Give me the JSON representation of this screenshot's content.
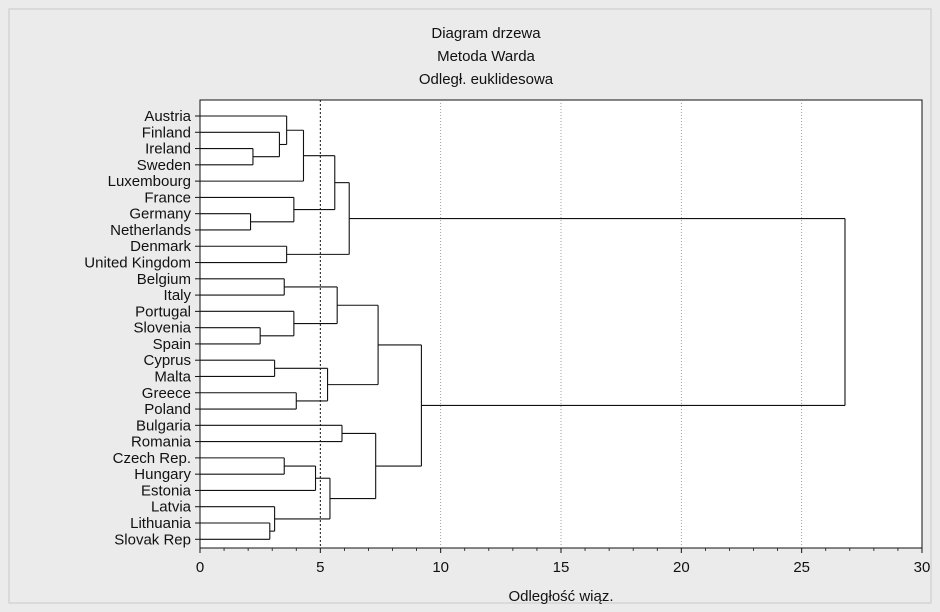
{
  "chart_data": {
    "type": "dendrogram",
    "title_lines": [
      "Diagram drzewa",
      "Metoda Warda",
      "Odległ. euklidesowa"
    ],
    "xlabel": "Odległość wiąz.",
    "xlim": [
      0,
      30
    ],
    "xticks": [
      0,
      5,
      10,
      15,
      20,
      25,
      30
    ],
    "grid": true,
    "reference_line": 5,
    "leaves": [
      "Austria",
      "Finland",
      "Ireland",
      "Sweden",
      "Luxembourg",
      "France",
      "Germany",
      "Netherlands",
      "Denmark",
      "United Kingdom",
      "Belgium",
      "Italy",
      "Portugal",
      "Slovenia",
      "Spain",
      "Cyprus",
      "Malta",
      "Greece",
      "Poland",
      "Bulgaria",
      "Romania",
      "Czech Rep.",
      "Hungary",
      "Estonia",
      "Latvia",
      "Lithuania",
      "Slovak Rep"
    ],
    "merges": [
      {
        "id": "c1",
        "a": "Ireland",
        "b": "Sweden",
        "height": 2.2
      },
      {
        "id": "c2",
        "a": "Finland",
        "b": "c1",
        "height": 3.3
      },
      {
        "id": "c3",
        "a": "Austria",
        "b": "c2",
        "height": 3.6
      },
      {
        "id": "c4",
        "a": "c3",
        "b": "Luxembourg",
        "height": 4.3
      },
      {
        "id": "c5",
        "a": "Germany",
        "b": "Netherlands",
        "height": 2.1
      },
      {
        "id": "c6",
        "a": "France",
        "b": "c5",
        "height": 3.9
      },
      {
        "id": "c7",
        "a": "c4",
        "b": "c6",
        "height": 5.6
      },
      {
        "id": "c8",
        "a": "Denmark",
        "b": "United Kingdom",
        "height": 3.6
      },
      {
        "id": "c9",
        "a": "c7",
        "b": "c8",
        "height": 6.2
      },
      {
        "id": "c10",
        "a": "Belgium",
        "b": "Italy",
        "height": 3.5
      },
      {
        "id": "c11",
        "a": "Slovenia",
        "b": "Spain",
        "height": 2.5
      },
      {
        "id": "c12",
        "a": "Portugal",
        "b": "c11",
        "height": 3.9
      },
      {
        "id": "c13",
        "a": "c10",
        "b": "c12",
        "height": 5.7
      },
      {
        "id": "c14",
        "a": "Cyprus",
        "b": "Malta",
        "height": 3.1
      },
      {
        "id": "c15",
        "a": "Greece",
        "b": "Poland",
        "height": 4.0
      },
      {
        "id": "c16",
        "a": "c14",
        "b": "c15",
        "height": 5.3
      },
      {
        "id": "c17",
        "a": "c13",
        "b": "c16",
        "height": 7.4
      },
      {
        "id": "c18",
        "a": "Bulgaria",
        "b": "Romania",
        "height": 5.9
      },
      {
        "id": "c19",
        "a": "Czech Rep.",
        "b": "Hungary",
        "height": 3.5
      },
      {
        "id": "c20",
        "a": "c19",
        "b": "Estonia",
        "height": 4.8
      },
      {
        "id": "c21",
        "a": "Lithuania",
        "b": "Slovak Rep",
        "height": 2.9
      },
      {
        "id": "c22",
        "a": "Latvia",
        "b": "c21",
        "height": 3.1
      },
      {
        "id": "c23",
        "a": "c20",
        "b": "c22",
        "height": 5.4
      },
      {
        "id": "c24",
        "a": "c18",
        "b": "c23",
        "height": 7.3
      },
      {
        "id": "c25",
        "a": "c17",
        "b": "c24",
        "height": 9.2
      },
      {
        "id": "c26",
        "a": "c9",
        "b": "c25",
        "height": 26.8
      }
    ]
  }
}
